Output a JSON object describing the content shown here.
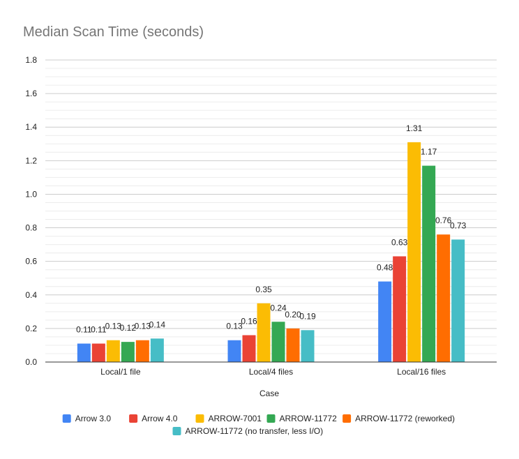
{
  "chart_data": {
    "type": "bar",
    "title": "Median Scan Time (seconds)",
    "xlabel": "Case",
    "ylabel": "",
    "categories": [
      "Local/1 file",
      "Local/4 files",
      "Local/16 files"
    ],
    "ylim": [
      0,
      1.8
    ],
    "yticks": [
      "0.0",
      "0.2",
      "0.4",
      "0.6",
      "0.8",
      "1.0",
      "1.2",
      "1.4",
      "1.6",
      "1.8"
    ],
    "grid": true,
    "legend_position": "bottom",
    "series": [
      {
        "name": "Arrow 3.0",
        "color": "#4285f4",
        "values": [
          0.11,
          0.13,
          0.48
        ],
        "labels": [
          "0.11",
          "0.13",
          "0.48"
        ]
      },
      {
        "name": "Arrow 4.0",
        "color": "#ea4335",
        "values": [
          0.11,
          0.16,
          0.63
        ],
        "labels": [
          "0.11",
          "0.16",
          "0.63"
        ]
      },
      {
        "name": "ARROW-7001",
        "color": "#fbbc04",
        "values": [
          0.13,
          0.35,
          1.31
        ],
        "labels": [
          "0.13",
          "0.35",
          "1.31"
        ]
      },
      {
        "name": "ARROW-11772",
        "color": "#34a853",
        "values": [
          0.12,
          0.24,
          1.17
        ],
        "labels": [
          "0.12",
          "0.24",
          "1.17"
        ]
      },
      {
        "name": "ARROW-11772 (reworked)",
        "color": "#ff6d01",
        "values": [
          0.13,
          0.2,
          0.76
        ],
        "labels": [
          "0.13",
          "0.20",
          "0.76"
        ]
      },
      {
        "name": "ARROW-11772 (no transfer, less I/O)",
        "color": "#46bdc6",
        "values": [
          0.14,
          0.19,
          0.73
        ],
        "labels": [
          "0.14",
          "0.19",
          "0.73"
        ]
      }
    ]
  }
}
